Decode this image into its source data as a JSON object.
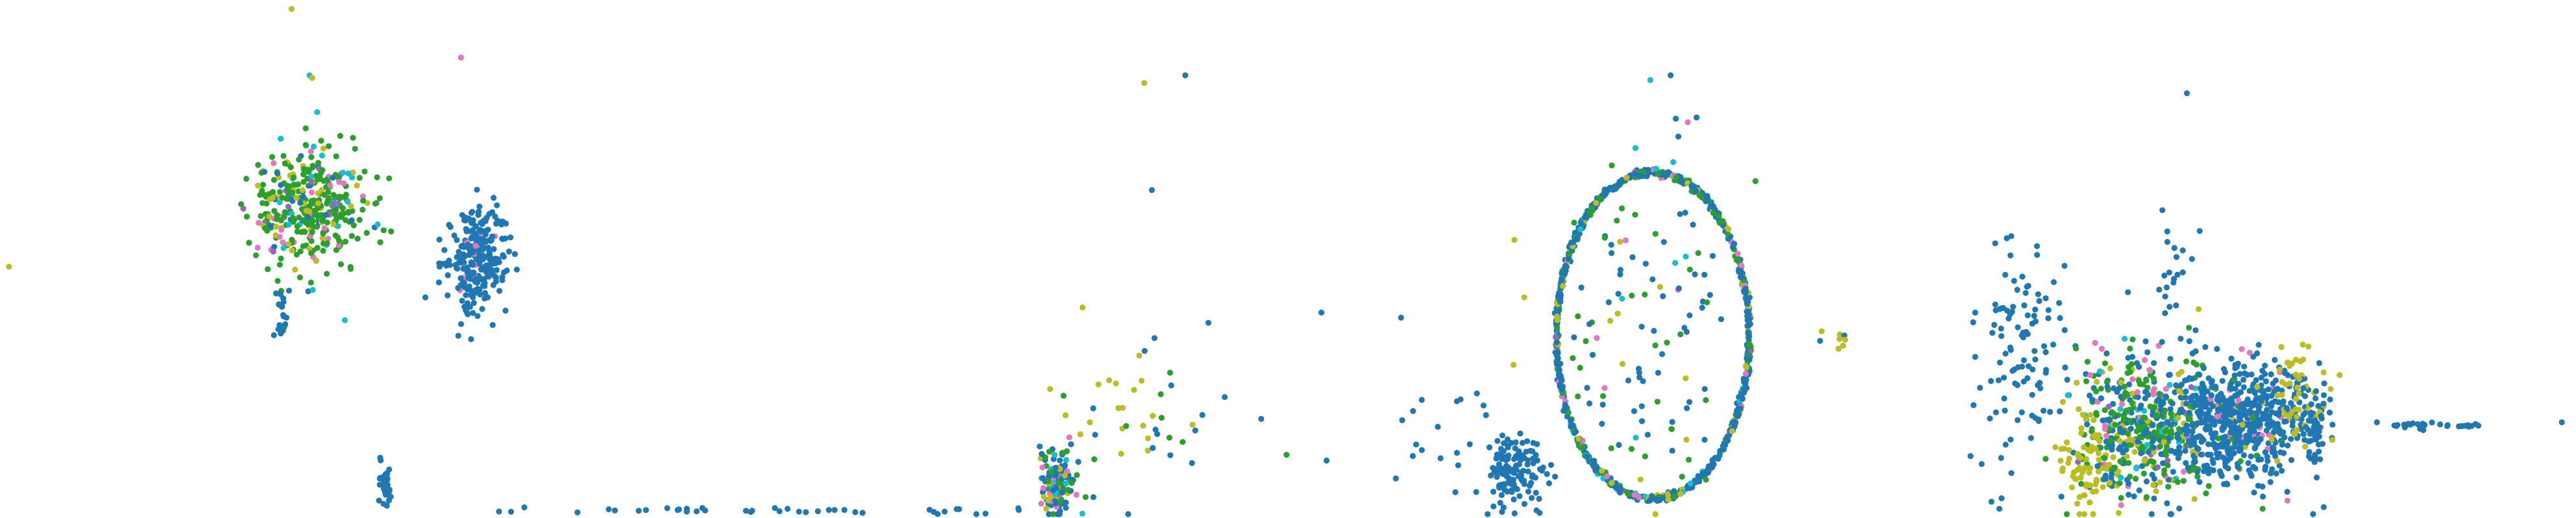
{
  "chart_data": {
    "type": "scatter",
    "title": "",
    "xlabel": "",
    "ylabel": "",
    "axes_visible": false,
    "grid": false,
    "legend": "none",
    "xlim": [
      0,
      100
    ],
    "ylim": [
      0,
      100
    ],
    "series": [
      {
        "color": "#1f77b4"
      },
      {
        "color": "#2ca02c"
      },
      {
        "color": "#bcbd22"
      },
      {
        "color": "#e377c2"
      },
      {
        "color": "#17becf"
      },
      {
        "color": "#9467bd"
      }
    ],
    "clusters": [
      {
        "cx": 11.8,
        "cy": 60.0,
        "sx": 1.1,
        "sy": 6.0,
        "n": 380,
        "mix": [
          0.06,
          0.6,
          0.14,
          0.07,
          0.07,
          0.06
        ]
      },
      {
        "cx": 18.4,
        "cy": 50.0,
        "sx": 0.6,
        "sy": 5.0,
        "n": 260,
        "mix": [
          0.95,
          0.0,
          0.0,
          0.05,
          0.0,
          0.0
        ]
      },
      {
        "cx": 10.8,
        "cy": 40.0,
        "sx": 0.12,
        "sy": 2.8,
        "n": 22,
        "mix": [
          0.85,
          0.15,
          0.0,
          0.0,
          0.0,
          0.0
        ]
      },
      {
        "cx": 14.9,
        "cy": 5.0,
        "sx": 0.15,
        "sy": 2.2,
        "n": 30,
        "mix": [
          1.0,
          0.0,
          0.0,
          0.0,
          0.0,
          0.0
        ]
      },
      {
        "cx": 41.0,
        "cy": 7.0,
        "sx": 0.35,
        "sy": 3.2,
        "n": 140,
        "mix": [
          0.55,
          0.2,
          0.1,
          0.1,
          0.05,
          0.0
        ]
      },
      {
        "cx": 44.0,
        "cy": 17.0,
        "sx": 2.0,
        "sy": 8.0,
        "n": 45,
        "mix": [
          0.35,
          0.15,
          0.5,
          0.0,
          0.0,
          0.0
        ]
      },
      {
        "cx": 58.8,
        "cy": 8.0,
        "sx": 0.55,
        "sy": 3.2,
        "n": 120,
        "mix": [
          1.0,
          0.0,
          0.0,
          0.0,
          0.0,
          0.0
        ]
      },
      {
        "cx": 57.0,
        "cy": 14.0,
        "sx": 1.3,
        "sy": 6.0,
        "n": 25,
        "mix": [
          1.0,
          0.0,
          0.0,
          0.0,
          0.0,
          0.0
        ]
      },
      {
        "cx": 64.0,
        "cy": 40.0,
        "sx": 2.4,
        "sy": 22.0,
        "n": 40,
        "mix": [
          0.25,
          0.5,
          0.15,
          0.05,
          0.05,
          0.0
        ]
      },
      {
        "cx": 71.3,
        "cy": 34.0,
        "sx": 0.3,
        "sy": 1.2,
        "n": 8,
        "mix": [
          0.3,
          0.0,
          0.7,
          0.0,
          0.0,
          0.0
        ]
      },
      {
        "cx": 78.5,
        "cy": 32.0,
        "sx": 0.9,
        "sy": 12.0,
        "n": 110,
        "mix": [
          1.0,
          0.0,
          0.0,
          0.0,
          0.0,
          0.0
        ]
      },
      {
        "cx": 83.5,
        "cy": 17.0,
        "sx": 1.4,
        "sy": 7.0,
        "n": 520,
        "mix": [
          0.3,
          0.4,
          0.15,
          0.07,
          0.05,
          0.03
        ]
      },
      {
        "cx": 87.0,
        "cy": 18.0,
        "sx": 1.3,
        "sy": 5.5,
        "n": 560,
        "mix": [
          0.88,
          0.04,
          0.03,
          0.05,
          0.0,
          0.0
        ]
      },
      {
        "cx": 81.0,
        "cy": 10.0,
        "sx": 0.5,
        "sy": 5.0,
        "n": 80,
        "mix": [
          0.1,
          0.1,
          0.8,
          0.0,
          0.0,
          0.0
        ]
      },
      {
        "cx": 89.5,
        "cy": 24.0,
        "sx": 0.6,
        "sy": 5.0,
        "n": 70,
        "mix": [
          0.3,
          0.0,
          0.7,
          0.0,
          0.0,
          0.0
        ]
      },
      {
        "cx": 90.0,
        "cy": 16.0,
        "sx": 0.15,
        "sy": 3.5,
        "n": 40,
        "mix": [
          1.0,
          0.0,
          0.0,
          0.0,
          0.0,
          0.0
        ]
      },
      {
        "cx": 84.5,
        "cy": 48.0,
        "sx": 0.25,
        "sy": 7.0,
        "n": 20,
        "mix": [
          1.0,
          0.0,
          0.0,
          0.0,
          0.0,
          0.0
        ]
      }
    ],
    "rings": [
      {
        "cx": 64.2,
        "cy": 35.0,
        "rx": 3.75,
        "ry": 32.0,
        "n": 900,
        "jitter": 0.22,
        "mix": [
          0.65,
          0.18,
          0.07,
          0.05,
          0.04,
          0.01
        ]
      }
    ],
    "lines": [
      {
        "x0": 93.0,
        "x1": 96.4,
        "y": 17.5,
        "n": 30,
        "color_index": 0
      },
      {
        "x0": 18.0,
        "x1": 40.0,
        "y": 0.6,
        "n": 40,
        "color_index": 0
      }
    ],
    "outliers": [
      {
        "x": 11.2,
        "y": 99.0,
        "s": 2
      },
      {
        "x": 11.9,
        "y": 86.0,
        "s": 4
      },
      {
        "x": 12.0,
        "y": 85.5,
        "s": 2
      },
      {
        "x": 17.8,
        "y": 89.5,
        "s": 3
      },
      {
        "x": 0.2,
        "y": 48.5,
        "s": 2
      },
      {
        "x": 44.4,
        "y": 84.5,
        "s": 2
      },
      {
        "x": 46.0,
        "y": 86.0,
        "s": 0
      },
      {
        "x": 44.7,
        "y": 63.5,
        "s": 0
      },
      {
        "x": 42.0,
        "y": 40.5,
        "s": 2
      },
      {
        "x": 44.8,
        "y": 34.5,
        "s": 0
      },
      {
        "x": 46.9,
        "y": 37.5,
        "s": 0
      },
      {
        "x": 51.3,
        "y": 39.5,
        "s": 0
      },
      {
        "x": 54.4,
        "y": 38.5,
        "s": 0
      },
      {
        "x": 51.5,
        "y": 10.5,
        "s": 0
      },
      {
        "x": 54.2,
        "y": 7.0,
        "s": 0
      },
      {
        "x": 64.9,
        "y": 86.0,
        "s": 0
      },
      {
        "x": 65.1,
        "y": 77.5,
        "s": 0
      },
      {
        "x": 65.2,
        "y": 74.0,
        "s": 0
      },
      {
        "x": 65.0,
        "y": 69.0,
        "s": 4
      },
      {
        "x": 85.0,
        "y": 82.5,
        "s": 0
      },
      {
        "x": 85.5,
        "y": 55.5,
        "s": 0
      },
      {
        "x": 85.2,
        "y": 50.0,
        "s": 0
      },
      {
        "x": 92.4,
        "y": 18.0,
        "s": 0
      },
      {
        "x": 99.6,
        "y": 18.0,
        "s": 0
      }
    ]
  }
}
